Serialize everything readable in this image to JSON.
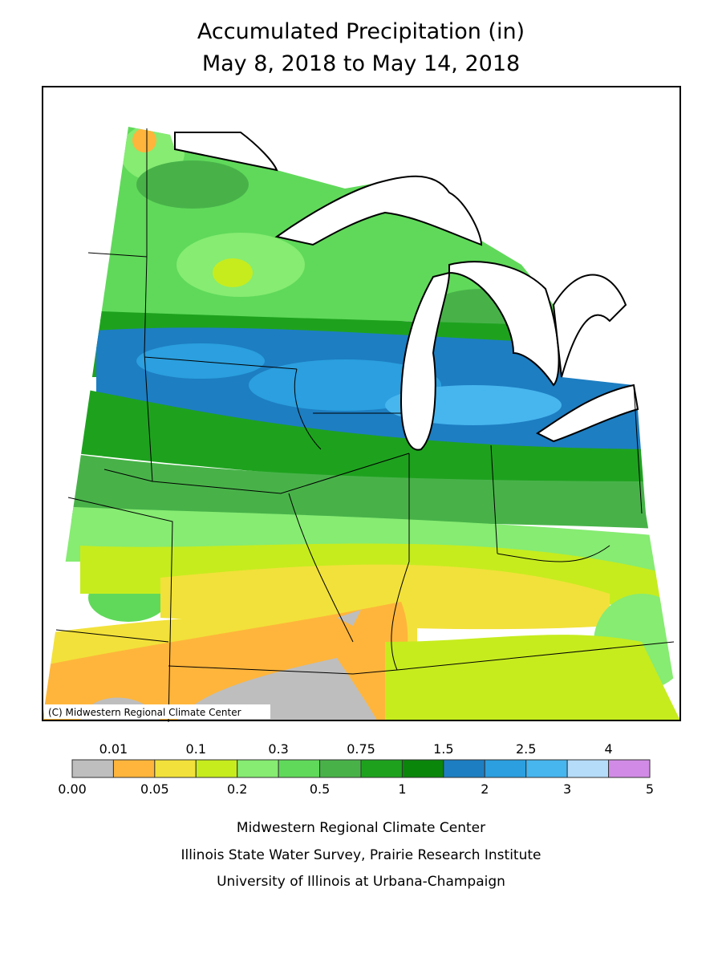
{
  "title": [
    "Accumulated Precipitation (in)",
    "May 8, 2018 to May 14, 2018"
  ],
  "map_credit": "(C) Midwestern Regional Climate Center",
  "legend": {
    "colors": [
      "#bebebe",
      "#ffb53b",
      "#f2e13a",
      "#c6ec1e",
      "#86ec72",
      "#60d95a",
      "#48b249",
      "#1ea21e",
      "#0a860a",
      "#1d7ec2",
      "#2b9fdf",
      "#47b5ee",
      "#b5dcf9",
      "#d18be6"
    ],
    "boundaries": [
      {
        "value": 0,
        "label": "0.00"
      },
      0.01,
      0.05,
      0.1,
      0.2,
      0.3,
      0.5,
      0.75,
      1,
      1.5,
      2,
      2.5,
      3,
      4,
      5
    ]
  },
  "footer": [
    "Midwestern Regional Climate Center",
    "Illinois State Water Survey, Prairie Research Institute",
    "University of Illinois at Urbana-Champaign"
  ]
}
